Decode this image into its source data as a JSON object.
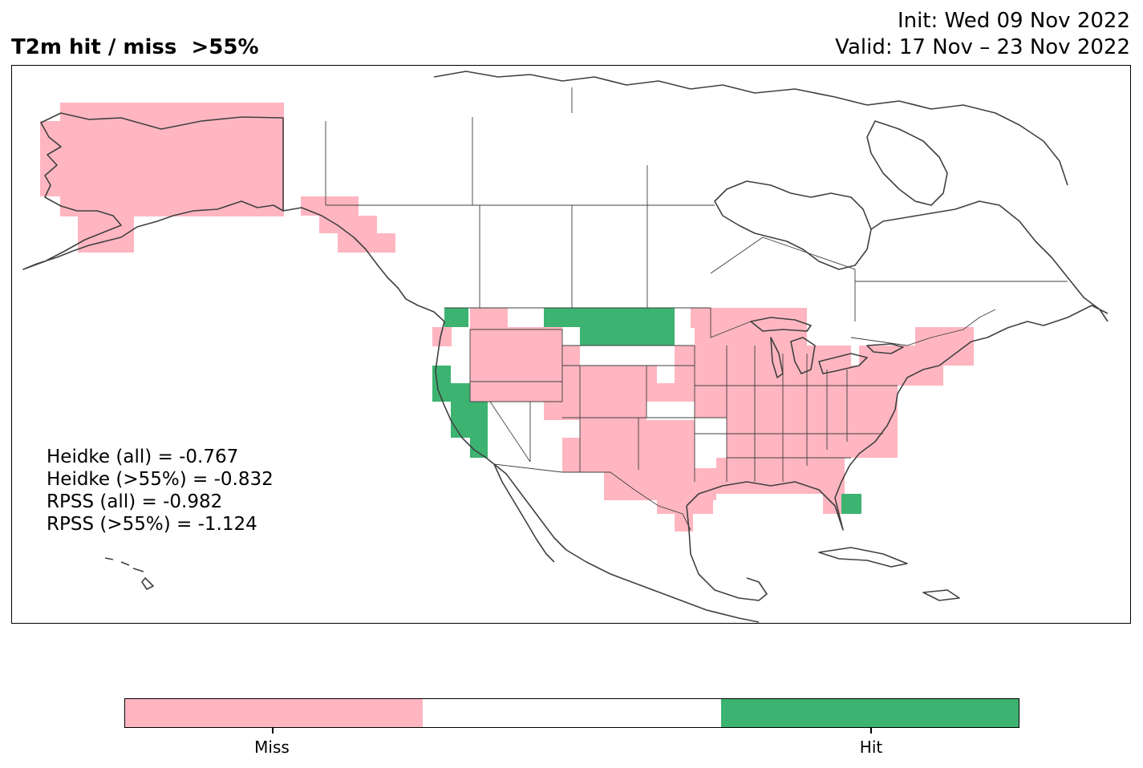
{
  "title": "T2m hit / miss  >55%",
  "init": "Init: Wed 09 Nov 2022",
  "valid": "Valid: 17 Nov – 23 Nov 2022",
  "stats": [
    "Heidke (all) = -0.767",
    "Heidke (>55%) = -0.832",
    "RPSS (all) = -0.982",
    "RPSS (>55%) = -1.124"
  ],
  "colors": {
    "miss": "#ffb6c1",
    "neutral": "#ffffff",
    "hit": "#3cb371",
    "coast": "#404040"
  },
  "colorbar": {
    "labels": [
      "Miss",
      "Hit"
    ]
  }
}
